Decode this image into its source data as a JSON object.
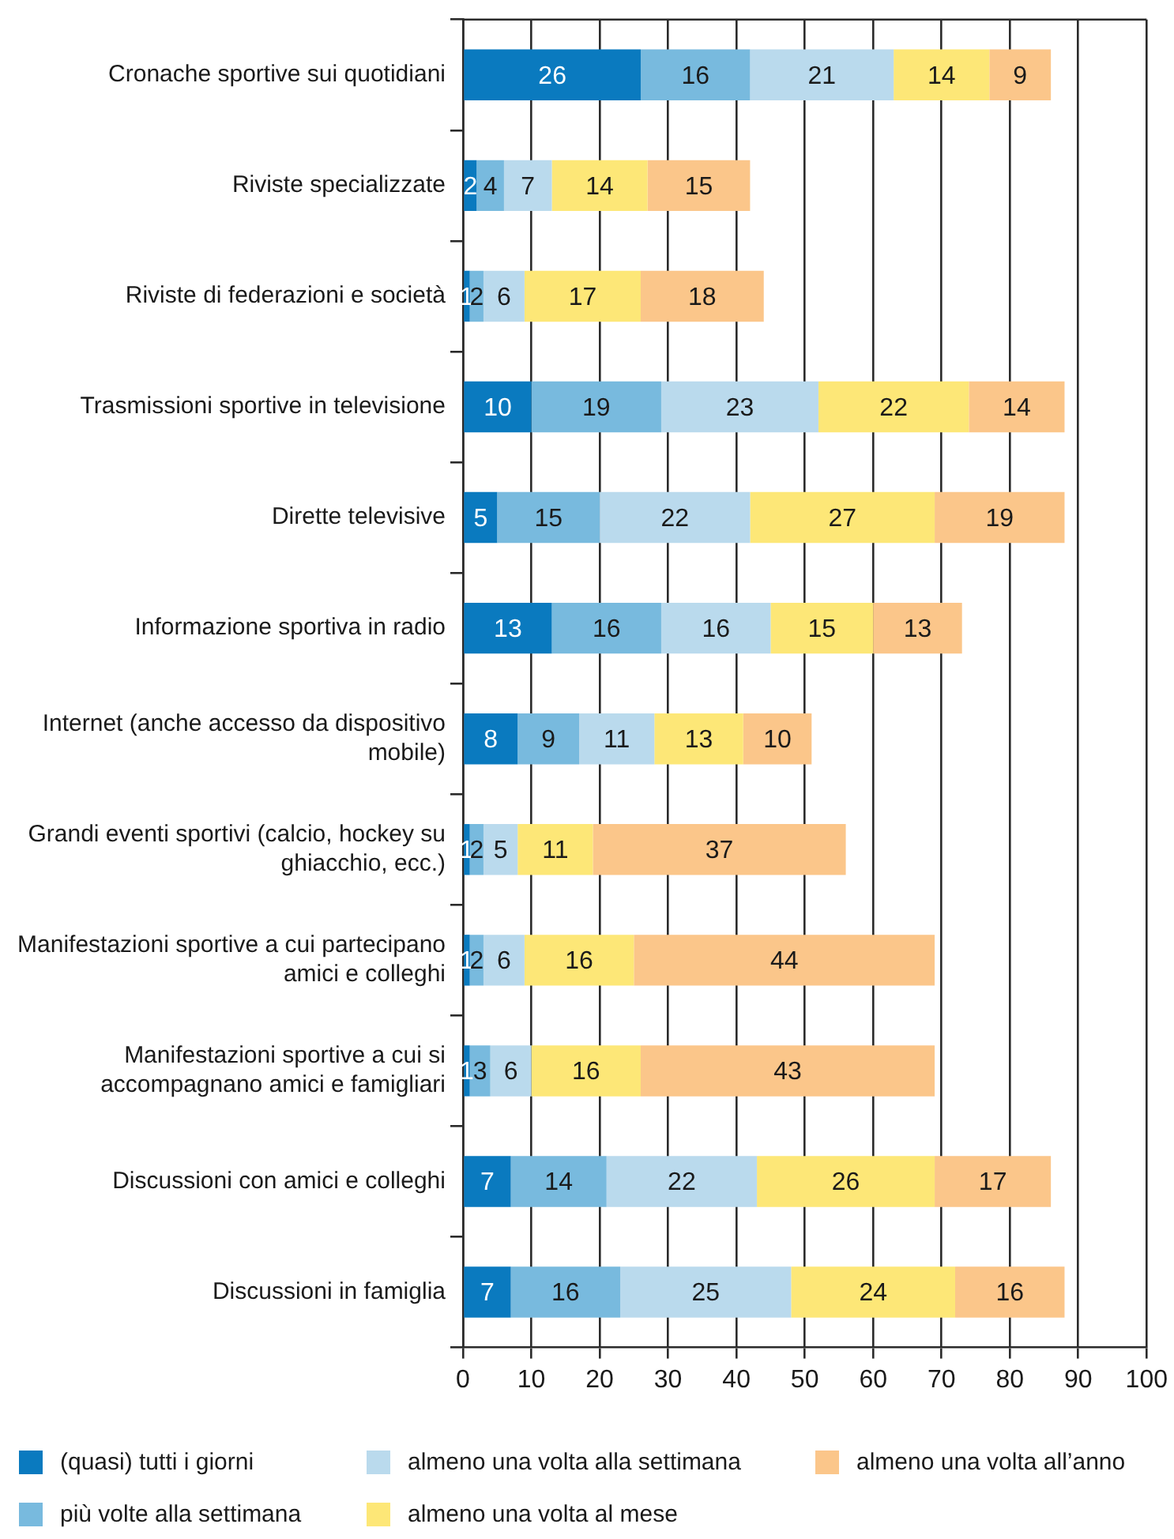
{
  "chart_data": {
    "type": "bar",
    "orientation": "horizontal",
    "stacked": true,
    "categories": [
      "Cronache sportive sui quotidiani",
      "Riviste specializzate",
      "Riviste di federazioni e società",
      "Trasmissioni sportive in televisione",
      "Dirette televisive",
      "Informazione sportiva in radio",
      "Internet (anche accesso da dispositivo mobile)",
      "Grandi eventi sportivi (calcio, hockey su ghiacchio, ecc.)",
      "Manifestazioni sportive a cui partecipano amici e colleghi",
      "Manifestazioni sportive a cui si accompagnano amici e famigliari",
      "Discussioni con amici e colleghi",
      "Discussioni in famiglia"
    ],
    "series": [
      {
        "name": "(quasi) tutti i giorni",
        "color": "#0a7abf",
        "values": [
          26,
          2,
          1,
          10,
          5,
          13,
          8,
          1,
          1,
          1,
          7,
          7
        ]
      },
      {
        "name": "più volte alla settimana",
        "color": "#78bade",
        "values": [
          16,
          4,
          2,
          19,
          15,
          16,
          9,
          2,
          2,
          3,
          14,
          16
        ]
      },
      {
        "name": "almeno una volta alla settimana",
        "color": "#badaed",
        "values": [
          21,
          7,
          6,
          23,
          22,
          16,
          11,
          5,
          6,
          6,
          22,
          25
        ]
      },
      {
        "name": "almeno una volta al mese",
        "color": "#fde777",
        "values": [
          14,
          14,
          17,
          22,
          27,
          15,
          13,
          11,
          16,
          16,
          26,
          24
        ]
      },
      {
        "name": "almeno una volta all’anno",
        "color": "#fbc68a",
        "values": [
          9,
          15,
          18,
          14,
          19,
          13,
          10,
          37,
          44,
          43,
          17,
          16
        ]
      }
    ],
    "xlim": [
      0,
      100
    ],
    "xticks": [
      0,
      10,
      20,
      30,
      40,
      50,
      60,
      70,
      80,
      90,
      100
    ],
    "grid": "x",
    "legend": "bottom",
    "data_labels": true
  }
}
